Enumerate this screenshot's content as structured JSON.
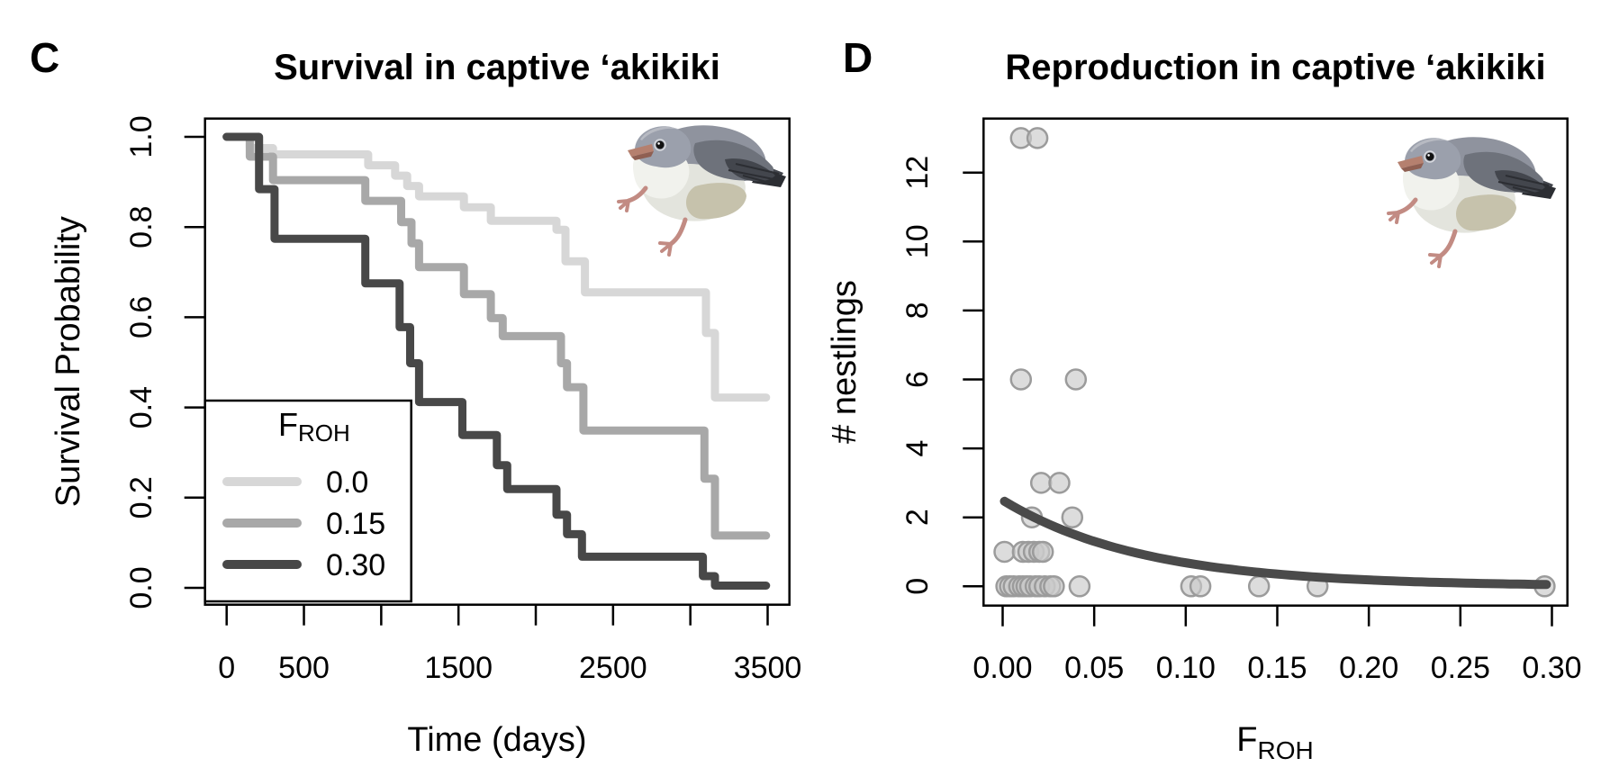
{
  "figure": {
    "background": "#ffffff",
    "axis_color": "#000000",
    "panel_c_label": "C",
    "panel_d_label": "D"
  },
  "chart_data": [
    {
      "id": "survival",
      "panel_label": "C",
      "type": "line",
      "subtype": "kaplan-meier-step",
      "title": "Survival in captive ‘akikiki",
      "xlabel": "Time (days)",
      "ylabel": "Survival Probability",
      "xlim": [
        0,
        3500
      ],
      "ylim": [
        0.0,
        1.0
      ],
      "grid": false,
      "xticks": [
        0,
        500,
        1000,
        1500,
        2000,
        2500,
        3000,
        3500
      ],
      "xtick_labels": [
        "0",
        "500",
        "",
        "1500",
        "",
        "2500",
        "",
        "3500"
      ],
      "yticks": [
        0.0,
        0.2,
        0.4,
        0.6,
        0.8,
        1.0
      ],
      "ytick_labels": [
        "0.0",
        "0.2",
        "0.4",
        "0.6",
        "0.8",
        "1.0"
      ],
      "legend": {
        "position": "bottom-left",
        "title_main": "F",
        "title_sub": "ROH",
        "entries": [
          {
            "label": "0.0",
            "color": "#d7d7d7"
          },
          {
            "label": "0.15",
            "color": "#a8a8a8"
          },
          {
            "label": "0.30",
            "color": "#484848"
          }
        ]
      },
      "series": [
        {
          "name": "FROH-0.0",
          "legend_label": "0.0",
          "color": "#d7d7d7",
          "start": [
            0,
            1.0
          ],
          "end_time": 3490,
          "steps": [
            [
              150,
              0.975
            ],
            [
              300,
              0.961
            ],
            [
              916,
              0.937
            ],
            [
              1090,
              0.914
            ],
            [
              1168,
              0.891
            ],
            [
              1245,
              0.868
            ],
            [
              1535,
              0.844
            ],
            [
              1709,
              0.814
            ],
            [
              2134,
              0.794
            ],
            [
              2192,
              0.724
            ],
            [
              2318,
              0.655
            ],
            [
              3101,
              0.565
            ],
            [
              3159,
              0.422
            ]
          ]
        },
        {
          "name": "FROH-0.15",
          "legend_label": "0.15",
          "color": "#a8a8a8",
          "start": [
            0,
            1.0
          ],
          "end_time": 3490,
          "steps": [
            [
              150,
              0.956
            ],
            [
              300,
              0.904
            ],
            [
              897,
              0.858
            ],
            [
              1129,
              0.811
            ],
            [
              1196,
              0.764
            ],
            [
              1245,
              0.711
            ],
            [
              1535,
              0.651
            ],
            [
              1709,
              0.598
            ],
            [
              1786,
              0.558
            ],
            [
              2163,
              0.498
            ],
            [
              2202,
              0.445
            ],
            [
              2308,
              0.349
            ],
            [
              3091,
              0.242
            ],
            [
              3159,
              0.116
            ]
          ]
        },
        {
          "name": "FROH-0.30",
          "legend_label": "0.30",
          "color": "#484848",
          "start": [
            0,
            1.0
          ],
          "end_time": 3490,
          "steps": [
            [
              210,
              0.884
            ],
            [
              310,
              0.774
            ],
            [
              897,
              0.675
            ],
            [
              1119,
              0.578
            ],
            [
              1187,
              0.498
            ],
            [
              1245,
              0.412
            ],
            [
              1525,
              0.339
            ],
            [
              1748,
              0.272
            ],
            [
              1815,
              0.219
            ],
            [
              2134,
              0.162
            ],
            [
              2202,
              0.119
            ],
            [
              2299,
              0.069
            ],
            [
              3081,
              0.026
            ],
            [
              3159,
              0.005
            ]
          ]
        }
      ]
    },
    {
      "id": "reproduction",
      "panel_label": "D",
      "type": "scatter",
      "title": "Reproduction in captive ‘akikiki",
      "xlabel_main": "F",
      "xlabel_sub": "ROH",
      "ylabel": "# nestlings",
      "xlim": [
        0.0,
        0.3
      ],
      "ylim": [
        0,
        13
      ],
      "grid": false,
      "xticks": [
        0.0,
        0.05,
        0.1,
        0.15,
        0.2,
        0.25,
        0.3
      ],
      "xtick_labels": [
        "0.00",
        "0.05",
        "0.10",
        "0.15",
        "0.20",
        "0.25",
        "0.30"
      ],
      "yticks": [
        0,
        2,
        4,
        6,
        8,
        10,
        12
      ],
      "ytick_labels": [
        "0",
        "2",
        "4",
        "6",
        "8",
        "10",
        "12"
      ],
      "points": [
        [
          0.01,
          13
        ],
        [
          0.019,
          13
        ],
        [
          0.01,
          6
        ],
        [
          0.04,
          6
        ],
        [
          0.021,
          3
        ],
        [
          0.031,
          3
        ],
        [
          0.016,
          2
        ],
        [
          0.038,
          2
        ],
        [
          0.001,
          1
        ],
        [
          0.011,
          1
        ],
        [
          0.014,
          1
        ],
        [
          0.017,
          1
        ],
        [
          0.02,
          1
        ],
        [
          0.022,
          1
        ],
        [
          0.002,
          0
        ],
        [
          0.004,
          0
        ],
        [
          0.006,
          0
        ],
        [
          0.009,
          0
        ],
        [
          0.011,
          0
        ],
        [
          0.013,
          0
        ],
        [
          0.015,
          0
        ],
        [
          0.018,
          0
        ],
        [
          0.02,
          0
        ],
        [
          0.023,
          0
        ],
        [
          0.026,
          0
        ],
        [
          0.028,
          0
        ],
        [
          0.042,
          0
        ],
        [
          0.103,
          0
        ],
        [
          0.108,
          0
        ],
        [
          0.14,
          0
        ],
        [
          0.172,
          0
        ],
        [
          0.296,
          0
        ]
      ],
      "point_style": {
        "fill": "#c9c9c9",
        "fill_opacity": 0.65,
        "stroke": "#9b9b9b",
        "radius": 11
      },
      "fit_curve": {
        "type": "exponential-decay",
        "a": 2.5,
        "b": -13,
        "x_start": 0.001,
        "x_end": 0.297,
        "color": "#4a4a4a",
        "width": 10
      }
    }
  ],
  "bird": {
    "name": "akikiki illustration",
    "colors": {
      "head": "#9ba0ac",
      "crown": "#b7bac2",
      "body": "#8f939e",
      "wing": "#6e727b",
      "wing_dark": "#43464d",
      "tail": "#2c2e33",
      "breast": "#f1f2ed",
      "belly": "#e3e4dd",
      "flank": "#c6c2ac",
      "beak": "#b5806f",
      "beak_lower": "#8f5f52",
      "legs": "#c28b83",
      "eye": "#121212",
      "eye_ring": "#d8dadf"
    }
  }
}
